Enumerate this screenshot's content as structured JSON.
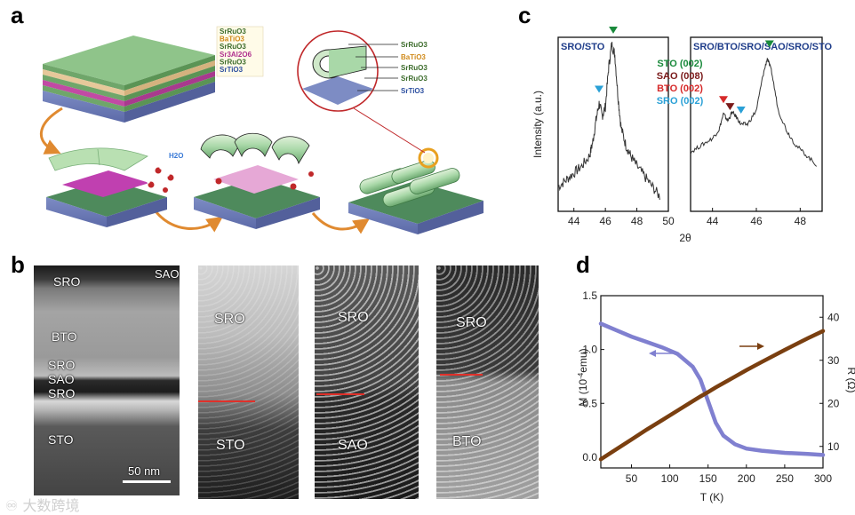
{
  "panels": {
    "a": "a",
    "b": "b",
    "c": "c",
    "d": "d"
  },
  "panel_a": {
    "stack_legend": [
      "SrRuO3",
      "BaTiO3",
      "SrRuO3",
      "Sr3Al2O6",
      "SrRuO3",
      "SrTiO3"
    ],
    "stack_legend_colors": [
      "#3b6b2a",
      "#d08a1a",
      "#3b6b2a",
      "#b0308e",
      "#3b6b2a",
      "#2c4fa0"
    ],
    "inset_legend": [
      "SrRuO3",
      "BaTiO3",
      "SrRuO3",
      "SrRuO3",
      "SrTiO3"
    ],
    "inset_legend_colors": [
      "#3b6b2a",
      "#d08a1a",
      "#3b6b2a",
      "#3b6b2a",
      "#2c4fa0"
    ],
    "water_label": "H2O"
  },
  "panel_b": {
    "image1": {
      "labels": [
        "SRO",
        "SAO",
        "BTO",
        "SRO",
        "SAO",
        "SRO",
        "STO"
      ],
      "scale_bar": "50 nm"
    },
    "image2": {
      "top": "SRO",
      "bottom": "STO"
    },
    "image3": {
      "top": "SRO",
      "bottom": "SAO"
    },
    "image4": {
      "top": "SRO",
      "bottom": "BTO"
    }
  },
  "panel_c": {
    "ylabel": "Intensity (a.u.)",
    "xlabel": "2θ",
    "left_title": "SRO/STO",
    "right_title": "SRO/BTO/SRO/SAO/SRO/STO",
    "left_ticks": [
      "44",
      "46",
      "48",
      "50"
    ],
    "right_ticks": [
      "44",
      "46",
      "48"
    ],
    "legend": [
      {
        "label": "STO (002)",
        "color": "#1a8a3c"
      },
      {
        "label": "SAO (008)",
        "color": "#7a1a1a"
      },
      {
        "label": "BTO (002)",
        "color": "#d62a2a"
      },
      {
        "label": "SRO (002)",
        "color": "#2aa0d6"
      }
    ]
  },
  "chart_data": [
    {
      "type": "line",
      "title": "SRO/STO",
      "xlabel": "2θ",
      "ylabel": "Intensity (a.u.)",
      "xlim": [
        43,
        50
      ],
      "x": [
        43.0,
        43.5,
        44.0,
        44.5,
        45.0,
        45.2,
        45.4,
        45.6,
        45.8,
        46.0,
        46.2,
        46.4,
        46.6,
        46.8,
        47.0,
        47.3,
        47.6,
        48.0,
        48.5,
        49.0,
        49.5
      ],
      "series": [
        {
          "values": [
            0.14,
            0.18,
            0.22,
            0.26,
            0.32,
            0.4,
            0.52,
            0.62,
            0.55,
            0.6,
            0.82,
            0.96,
            0.9,
            0.66,
            0.48,
            0.38,
            0.32,
            0.26,
            0.2,
            0.14,
            0.08
          ]
        }
      ],
      "markers": [
        {
          "x": 45.6,
          "label": "SRO (002)",
          "color": "#2aa0d6"
        },
        {
          "x": 46.5,
          "label": "STO (002)",
          "color": "#1a8a3c"
        }
      ]
    },
    {
      "type": "line",
      "title": "SRO/BTO/SRO/SAO/SRO/STO",
      "xlabel": "2θ",
      "ylabel": "Intensity (a.u.)",
      "xlim": [
        43,
        49
      ],
      "x": [
        43.0,
        43.5,
        44.0,
        44.3,
        44.5,
        44.7,
        44.9,
        45.1,
        45.3,
        45.6,
        46.0,
        46.3,
        46.5,
        46.7,
        47.0,
        47.4,
        47.8,
        48.3,
        48.8
      ],
      "series": [
        {
          "values": [
            0.34,
            0.38,
            0.42,
            0.47,
            0.56,
            0.52,
            0.57,
            0.54,
            0.5,
            0.5,
            0.58,
            0.78,
            0.88,
            0.8,
            0.58,
            0.46,
            0.38,
            0.32,
            0.26
          ]
        }
      ],
      "markers": [
        {
          "x": 44.5,
          "label": "BTO (002)",
          "color": "#d62a2a"
        },
        {
          "x": 44.8,
          "label": "SAO (008)",
          "color": "#7a1a1a"
        },
        {
          "x": 45.3,
          "label": "SRO (002)",
          "color": "#2aa0d6"
        },
        {
          "x": 46.6,
          "label": "STO (002)",
          "color": "#1a8a3c"
        }
      ]
    },
    {
      "type": "line",
      "xlabel": "T (K)",
      "ylabel": "M (10-4emu)",
      "y2label": "R (Ω)",
      "xlim": [
        10,
        300
      ],
      "ylim": [
        -0.1,
        1.5
      ],
      "y2lim": [
        5,
        45
      ],
      "x_ticks": [
        50,
        100,
        150,
        200,
        250,
        300
      ],
      "y_ticks": [
        0.0,
        0.5,
        1.0,
        1.5
      ],
      "y2_ticks": [
        10,
        20,
        30,
        40
      ],
      "x": [
        10,
        30,
        50,
        70,
        90,
        110,
        130,
        140,
        150,
        160,
        170,
        185,
        200,
        220,
        250,
        280,
        300
      ],
      "series": [
        {
          "name": "M",
          "axis": "left",
          "color": "#8080d0",
          "values": [
            1.24,
            1.18,
            1.12,
            1.07,
            1.02,
            0.96,
            0.84,
            0.72,
            0.52,
            0.32,
            0.2,
            0.12,
            0.08,
            0.06,
            0.04,
            0.03,
            0.02
          ]
        },
        {
          "name": "R",
          "axis": "right",
          "color": "#7a3f10",
          "values": [
            7.0,
            9.3,
            11.6,
            13.9,
            16.1,
            18.3,
            20.5,
            21.6,
            22.6,
            23.7,
            24.7,
            26.2,
            27.7,
            29.6,
            32.4,
            35.1,
            36.8
          ]
        }
      ]
    }
  ],
  "panel_d": {
    "ylabel_left": "M (10",
    "ylabel_sup": "-4",
    "ylabel_unit": "emu)",
    "ylabel_right": "R (Ω)",
    "xlabel": "T (K)",
    "x_ticks": [
      "50",
      "100",
      "150",
      "200",
      "250",
      "300"
    ],
    "y_ticks": [
      "0.0",
      "0.5",
      "1.0",
      "1.5"
    ],
    "y2_ticks": [
      "10",
      "20",
      "30",
      "40"
    ]
  },
  "watermark": "大数跨境"
}
